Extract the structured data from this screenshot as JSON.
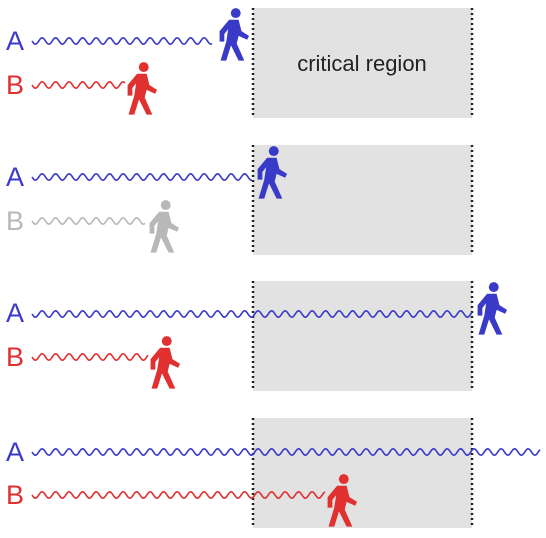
{
  "region_label": "critical region",
  "colors": {
    "thread_a": "#3a3ac8",
    "thread_b": "#e03030",
    "waiting": "#b8b8b8",
    "region_fill": "#e2e2e2",
    "region_border": "#222222"
  },
  "icons": {
    "walker": "walking-person-icon"
  },
  "scenarios": [
    {
      "threads": [
        {
          "letter": "A",
          "state": "active"
        },
        {
          "letter": "B",
          "state": "active"
        }
      ]
    },
    {
      "threads": [
        {
          "letter": "A",
          "state": "active"
        },
        {
          "letter": "B",
          "state": "waiting"
        }
      ]
    },
    {
      "threads": [
        {
          "letter": "A",
          "state": "active"
        },
        {
          "letter": "B",
          "state": "active"
        }
      ]
    },
    {
      "threads": [
        {
          "letter": "A",
          "state": "active"
        },
        {
          "letter": "B",
          "state": "active"
        }
      ]
    }
  ]
}
